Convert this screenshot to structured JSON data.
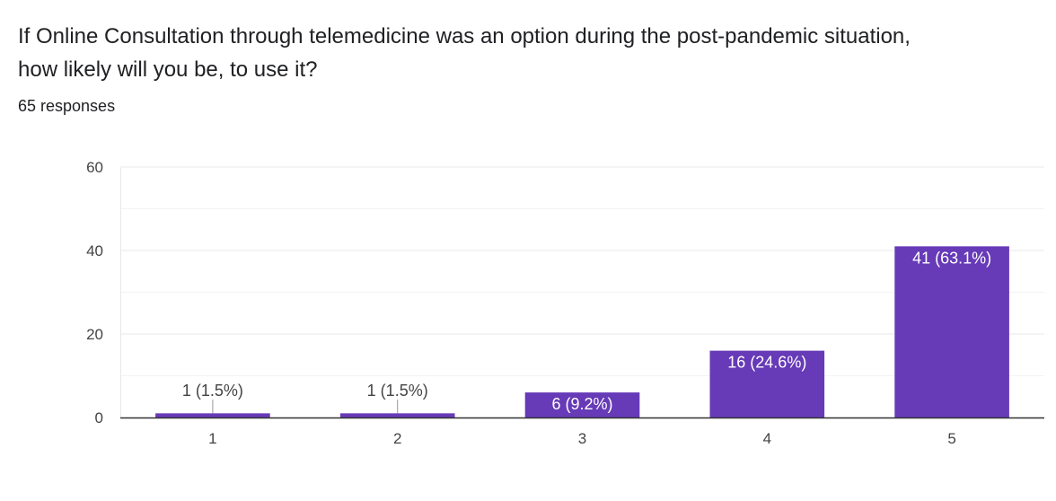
{
  "question": {
    "title": "If Online Consultation through telemedicine was an option during the post-pandemic situation, how likely will you be, to use it?",
    "responses": "65 responses"
  },
  "colors": {
    "bar": "#673ab7",
    "grid": "#e8e8e8",
    "axis": "#333333",
    "text": "#202124",
    "label_inside": "#ffffff",
    "label_outside": "#444444"
  },
  "chart_data": {
    "type": "bar",
    "categories": [
      "1",
      "2",
      "3",
      "4",
      "5"
    ],
    "values": [
      1,
      1,
      6,
      16,
      41
    ],
    "data_labels": [
      "1 (1.5%)",
      "1 (1.5%)",
      "6 (9.2%)",
      "16 (24.6%)",
      "41 (63.1%)"
    ],
    "title": "",
    "xlabel": "",
    "ylabel": "",
    "ylim": [
      0,
      60
    ],
    "yticks": [
      0,
      20,
      40,
      60
    ],
    "minor_gridlines": [
      10,
      30,
      50
    ],
    "grid": true,
    "legend": "none"
  }
}
